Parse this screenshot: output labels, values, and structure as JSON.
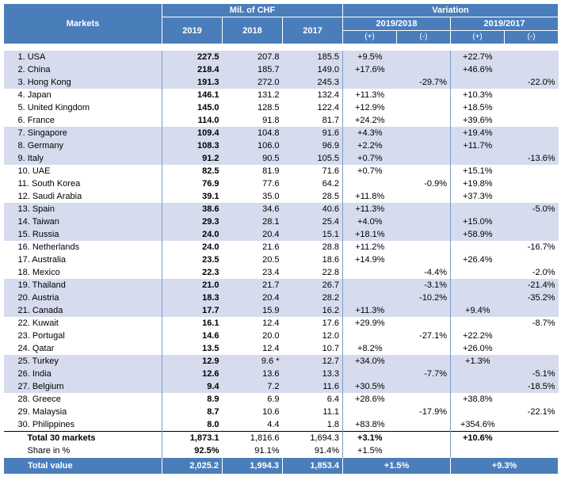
{
  "header": {
    "markets": "Markets",
    "mil_chf": "Mil. of CHF",
    "variation": "Variation",
    "y2019": "2019",
    "y2018": "2018",
    "y2017": "2017",
    "var_1918": "2019/2018",
    "var_1917": "2019/2017",
    "plus": "(+)",
    "minus": "(-)"
  },
  "rows": [
    {
      "market": "1. USA",
      "v2019": "227.5",
      "v2018": "207.8",
      "v2017": "185.5",
      "p1": "+9.5%",
      "m1": "",
      "p2": "+22.7%",
      "m2": "",
      "band": true
    },
    {
      "market": "2. China",
      "v2019": "218.4",
      "v2018": "185.7",
      "v2017": "149.0",
      "p1": "+17.6%",
      "m1": "",
      "p2": "+46.6%",
      "m2": "",
      "band": true
    },
    {
      "market": "3. Hong Kong",
      "v2019": "191.3",
      "v2018": "272.0",
      "v2017": "245.3",
      "p1": "",
      "m1": "-29.7%",
      "p2": "",
      "m2": "-22.0%",
      "band": true
    },
    {
      "market": "4. Japan",
      "v2019": "146.1",
      "v2018": "131.2",
      "v2017": "132.4",
      "p1": "+11.3%",
      "m1": "",
      "p2": "+10.3%",
      "m2": "",
      "band": false
    },
    {
      "market": "5. United Kingdom",
      "v2019": "145.0",
      "v2018": "128.5",
      "v2017": "122.4",
      "p1": "+12.9%",
      "m1": "",
      "p2": "+18.5%",
      "m2": "",
      "band": false
    },
    {
      "market": "6. France",
      "v2019": "114.0",
      "v2018": "91.8",
      "v2017": "81.7",
      "p1": "+24.2%",
      "m1": "",
      "p2": "+39.6%",
      "m2": "",
      "band": false
    },
    {
      "market": "7. Singapore",
      "v2019": "109.4",
      "v2018": "104.8",
      "v2017": "91.6",
      "p1": "+4.3%",
      "m1": "",
      "p2": "+19.4%",
      "m2": "",
      "band": true
    },
    {
      "market": "8. Germany",
      "v2019": "108.3",
      "v2018": "106.0",
      "v2017": "96.9",
      "p1": "+2.2%",
      "m1": "",
      "p2": "+11.7%",
      "m2": "",
      "band": true
    },
    {
      "market": "9. Italy",
      "v2019": "91.2",
      "v2018": "90.5",
      "v2017": "105.5",
      "p1": "+0.7%",
      "m1": "",
      "p2": "",
      "m2": "-13.6%",
      "band": true
    },
    {
      "market": "10. UAE",
      "v2019": "82.5",
      "v2018": "81.9",
      "v2017": "71.6",
      "p1": "+0.7%",
      "m1": "",
      "p2": "+15.1%",
      "m2": "",
      "band": false
    },
    {
      "market": "11. South Korea",
      "v2019": "76.9",
      "v2018": "77.6",
      "v2017": "64.2",
      "p1": "",
      "m1": "-0.9%",
      "p2": "+19.8%",
      "m2": "",
      "band": false
    },
    {
      "market": "12. Saudi Arabia",
      "v2019": "39.1",
      "v2018": "35.0",
      "v2017": "28.5",
      "p1": "+11.8%",
      "m1": "",
      "p2": "+37.3%",
      "m2": "",
      "band": false
    },
    {
      "market": "13. Spain",
      "v2019": "38.6",
      "v2018": "34.6",
      "v2017": "40.6",
      "p1": "+11.3%",
      "m1": "",
      "p2": "",
      "m2": "-5.0%",
      "band": true
    },
    {
      "market": "14. Taiwan",
      "v2019": "29.3",
      "v2018": "28.1",
      "v2017": "25.4",
      "p1": "+4.0%",
      "m1": "",
      "p2": "+15.0%",
      "m2": "",
      "band": true
    },
    {
      "market": "15. Russia",
      "v2019": "24.0",
      "v2018": "20.4",
      "v2017": "15.1",
      "p1": "+18.1%",
      "m1": "",
      "p2": "+58.9%",
      "m2": "",
      "band": true
    },
    {
      "market": "16. Netherlands",
      "v2019": "24.0",
      "v2018": "21.6",
      "v2017": "28.8",
      "p1": "+11.2%",
      "m1": "",
      "p2": "",
      "m2": "-16.7%",
      "band": false
    },
    {
      "market": "17. Australia",
      "v2019": "23.5",
      "v2018": "20.5",
      "v2017": "18.6",
      "p1": "+14.9%",
      "m1": "",
      "p2": "+26.4%",
      "m2": "",
      "band": false
    },
    {
      "market": "18. Mexico",
      "v2019": "22.3",
      "v2018": "23.4",
      "v2017": "22.8",
      "p1": "",
      "m1": "-4.4%",
      "p2": "",
      "m2": "-2.0%",
      "band": false
    },
    {
      "market": "19. Thailand",
      "v2019": "21.0",
      "v2018": "21.7",
      "v2017": "26.7",
      "p1": "",
      "m1": "-3.1%",
      "p2": "",
      "m2": "-21.4%",
      "band": true
    },
    {
      "market": "20. Austria",
      "v2019": "18.3",
      "v2018": "20.4",
      "v2017": "28.2",
      "p1": "",
      "m1": "-10.2%",
      "p2": "",
      "m2": "-35.2%",
      "band": true
    },
    {
      "market": "21. Canada",
      "v2019": "17.7",
      "v2018": "15.9",
      "v2017": "16.2",
      "p1": "+11.3%",
      "m1": "",
      "p2": "+9.4%",
      "m2": "",
      "band": true
    },
    {
      "market": "22. Kuwait",
      "v2019": "16.1",
      "v2018": "12.4",
      "v2017": "17.6",
      "p1": "+29.9%",
      "m1": "",
      "p2": "",
      "m2": "-8.7%",
      "band": false
    },
    {
      "market": "23. Portugal",
      "v2019": "14.6",
      "v2018": "20.0",
      "v2017": "12.0",
      "p1": "",
      "m1": "-27.1%",
      "p2": "+22.2%",
      "m2": "",
      "band": false
    },
    {
      "market": "24. Qatar",
      "v2019": "13.5",
      "v2018": "12.4",
      "v2017": "10.7",
      "p1": "+8.2%",
      "m1": "",
      "p2": "+26.0%",
      "m2": "",
      "band": false
    },
    {
      "market": "25. Turkey",
      "v2019": "12.9",
      "v2018": "9.6 *",
      "v2017": "12.7",
      "p1": "+34.0%",
      "m1": "",
      "p2": "+1.3%",
      "m2": "",
      "band": true
    },
    {
      "market": "26. India",
      "v2019": "12.6",
      "v2018": "13.6",
      "v2017": "13.3",
      "p1": "",
      "m1": "-7.7%",
      "p2": "",
      "m2": "-5.1%",
      "band": true
    },
    {
      "market": "27. Belgium",
      "v2019": "9.4",
      "v2018": "7.2",
      "v2017": "11.6",
      "p1": "+30.5%",
      "m1": "",
      "p2": "",
      "m2": "-18.5%",
      "band": true
    },
    {
      "market": "28. Greece",
      "v2019": "8.9",
      "v2018": "6.9",
      "v2017": "6.4",
      "p1": "+28.6%",
      "m1": "",
      "p2": "+38.8%",
      "m2": "",
      "band": false
    },
    {
      "market": "29. Malaysia",
      "v2019": "8.7",
      "v2018": "10.6",
      "v2017": "11.1",
      "p1": "",
      "m1": "-17.9%",
      "p2": "",
      "m2": "-22.1%",
      "band": false
    },
    {
      "market": "30. Philippines",
      "v2019": "8.0",
      "v2018": "4.4",
      "v2017": "1.8",
      "p1": "+83.8%",
      "m1": "",
      "p2": "+354.6%",
      "m2": "",
      "band": false
    }
  ],
  "total30": {
    "label": "Total 30 markets",
    "v2019": "1,873.1",
    "v2018": "1,816.6",
    "v2017": "1,694.3",
    "p1": "+3.1%",
    "p2": "+10.6%"
  },
  "share": {
    "label": "Share in %",
    "v2019": "92.5%",
    "v2018": "91.1%",
    "v2017": "91.4%",
    "p1": "+1.5%"
  },
  "grand": {
    "label": "Total value",
    "v2019": "2,025.2",
    "v2018": "1,994.3",
    "v2017": "1,853.4",
    "p1": "+1.5%",
    "p2": "+9.3%"
  },
  "colors": {
    "header": "#4a7ebb",
    "band": "#d6dcee"
  }
}
